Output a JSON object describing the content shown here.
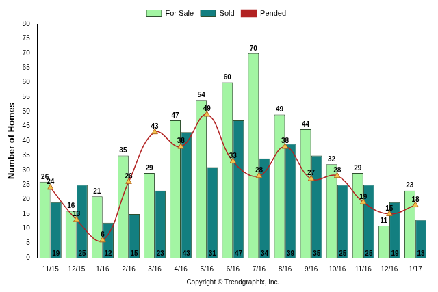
{
  "chart_data": {
    "type": "bar",
    "y_label": "Number of Homes",
    "x_label": "Copyright © Trendgraphix, Inc.",
    "categories": [
      "11/15",
      "12/15",
      "1/16",
      "2/16",
      "3/16",
      "4/16",
      "5/16",
      "6/16",
      "7/16",
      "8/16",
      "9/16",
      "10/16",
      "11/16",
      "12/16",
      "1/17"
    ],
    "series": [
      {
        "name": "For Sale",
        "type": "bar",
        "color": "#a3f5a3",
        "values": [
          26,
          16,
          21,
          35,
          29,
          47,
          54,
          60,
          70,
          49,
          44,
          32,
          29,
          11,
          23
        ]
      },
      {
        "name": "Sold",
        "type": "bar",
        "color": "#137f80",
        "values": [
          19,
          25,
          12,
          15,
          23,
          43,
          31,
          47,
          34,
          39,
          35,
          25,
          25,
          19,
          13
        ]
      },
      {
        "name": "Pended",
        "type": "line",
        "color": "#b22222",
        "marker": "triangle",
        "line_style": "solid",
        "values": [
          24,
          13,
          6,
          26,
          43,
          38,
          49,
          33,
          28,
          38,
          27,
          28,
          19,
          15,
          18
        ]
      }
    ],
    "ylim": [
      0,
      80
    ],
    "yticks": [
      0,
      5,
      10,
      15,
      20,
      25,
      30,
      35,
      40,
      45,
      50,
      55,
      60,
      65,
      70,
      75,
      80
    ],
    "grid": false,
    "legend": "top",
    "data_labels": true
  }
}
